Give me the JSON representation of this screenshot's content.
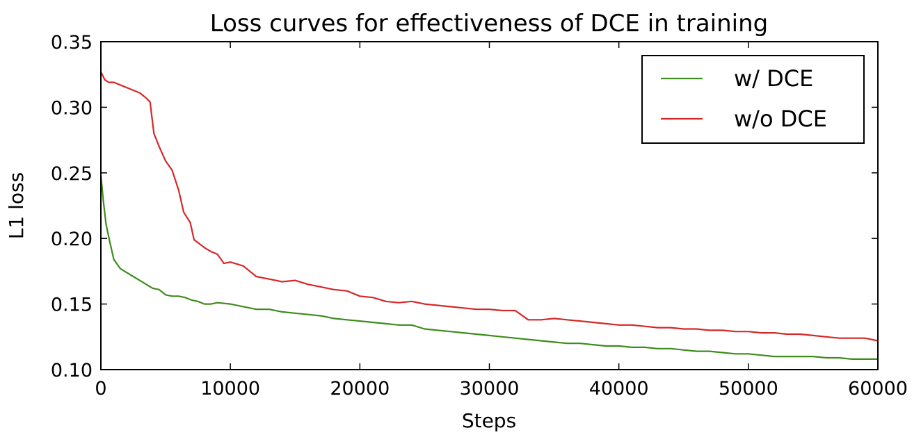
{
  "chart_data": {
    "type": "line",
    "title": "Loss curves for effectiveness of DCE in training",
    "xlabel": "Steps",
    "ylabel": "L1 loss",
    "xlim": [
      0,
      60000
    ],
    "ylim": [
      0.1,
      0.35
    ],
    "xticks": [
      0,
      10000,
      20000,
      30000,
      40000,
      50000,
      60000
    ],
    "xtick_labels": [
      "0",
      "10000",
      "20000",
      "30000",
      "40000",
      "50000",
      "60000"
    ],
    "yticks": [
      0.1,
      0.15,
      0.2,
      0.25,
      0.3,
      0.35
    ],
    "ytick_labels": [
      "0.10",
      "0.15",
      "0.20",
      "0.25",
      "0.30",
      "0.35"
    ],
    "grid": false,
    "legend_position": "top-right",
    "series": [
      {
        "name": "w/ DCE",
        "color": "#3d8c1c",
        "points": [
          [
            0,
            0.248
          ],
          [
            200,
            0.228
          ],
          [
            400,
            0.211
          ],
          [
            700,
            0.197
          ],
          [
            1000,
            0.184
          ],
          [
            1500,
            0.177
          ],
          [
            2000,
            0.174
          ],
          [
            2500,
            0.171
          ],
          [
            3000,
            0.168
          ],
          [
            3500,
            0.165
          ],
          [
            4000,
            0.162
          ],
          [
            4500,
            0.161
          ],
          [
            5000,
            0.157
          ],
          [
            5500,
            0.156
          ],
          [
            6000,
            0.156
          ],
          [
            6500,
            0.155
          ],
          [
            7000,
            0.153
          ],
          [
            7500,
            0.152
          ],
          [
            8000,
            0.15
          ],
          [
            8500,
            0.15
          ],
          [
            9000,
            0.151
          ],
          [
            10000,
            0.15
          ],
          [
            11000,
            0.148
          ],
          [
            12000,
            0.146
          ],
          [
            13000,
            0.146
          ],
          [
            14000,
            0.144
          ],
          [
            15000,
            0.143
          ],
          [
            16000,
            0.142
          ],
          [
            17000,
            0.141
          ],
          [
            18000,
            0.139
          ],
          [
            19000,
            0.138
          ],
          [
            20000,
            0.137
          ],
          [
            21000,
            0.136
          ],
          [
            22000,
            0.135
          ],
          [
            23000,
            0.134
          ],
          [
            24000,
            0.134
          ],
          [
            25000,
            0.131
          ],
          [
            26000,
            0.13
          ],
          [
            27000,
            0.129
          ],
          [
            28000,
            0.128
          ],
          [
            29000,
            0.127
          ],
          [
            30000,
            0.126
          ],
          [
            31000,
            0.125
          ],
          [
            32000,
            0.124
          ],
          [
            33000,
            0.123
          ],
          [
            34000,
            0.122
          ],
          [
            35000,
            0.121
          ],
          [
            36000,
            0.12
          ],
          [
            37000,
            0.12
          ],
          [
            38000,
            0.119
          ],
          [
            39000,
            0.118
          ],
          [
            40000,
            0.118
          ],
          [
            41000,
            0.117
          ],
          [
            42000,
            0.117
          ],
          [
            43000,
            0.116
          ],
          [
            44000,
            0.116
          ],
          [
            45000,
            0.115
          ],
          [
            46000,
            0.114
          ],
          [
            47000,
            0.114
          ],
          [
            48000,
            0.113
          ],
          [
            49000,
            0.112
          ],
          [
            50000,
            0.112
          ],
          [
            51000,
            0.111
          ],
          [
            52000,
            0.11
          ],
          [
            53000,
            0.11
          ],
          [
            54000,
            0.11
          ],
          [
            55000,
            0.11
          ],
          [
            56000,
            0.109
          ],
          [
            57000,
            0.109
          ],
          [
            58000,
            0.108
          ],
          [
            59000,
            0.108
          ],
          [
            60000,
            0.108
          ]
        ]
      },
      {
        "name": "w/o DCE",
        "color": "#d62728",
        "points": [
          [
            0,
            0.327
          ],
          [
            300,
            0.321
          ],
          [
            600,
            0.319
          ],
          [
            1000,
            0.319
          ],
          [
            1500,
            0.317
          ],
          [
            2000,
            0.315
          ],
          [
            2500,
            0.313
          ],
          [
            3000,
            0.311
          ],
          [
            3500,
            0.307
          ],
          [
            3800,
            0.304
          ],
          [
            4100,
            0.28
          ],
          [
            4500,
            0.27
          ],
          [
            5000,
            0.259
          ],
          [
            5500,
            0.252
          ],
          [
            6000,
            0.237
          ],
          [
            6400,
            0.22
          ],
          [
            6900,
            0.212
          ],
          [
            7200,
            0.199
          ],
          [
            7600,
            0.196
          ],
          [
            8000,
            0.193
          ],
          [
            8500,
            0.19
          ],
          [
            9000,
            0.188
          ],
          [
            9500,
            0.181
          ],
          [
            10000,
            0.182
          ],
          [
            11000,
            0.179
          ],
          [
            12000,
            0.171
          ],
          [
            13000,
            0.169
          ],
          [
            14000,
            0.167
          ],
          [
            15000,
            0.168
          ],
          [
            16000,
            0.165
          ],
          [
            17000,
            0.163
          ],
          [
            18000,
            0.161
          ],
          [
            19000,
            0.16
          ],
          [
            20000,
            0.156
          ],
          [
            21000,
            0.155
          ],
          [
            22000,
            0.152
          ],
          [
            23000,
            0.151
          ],
          [
            24000,
            0.152
          ],
          [
            25000,
            0.15
          ],
          [
            26000,
            0.149
          ],
          [
            27000,
            0.148
          ],
          [
            28000,
            0.147
          ],
          [
            29000,
            0.146
          ],
          [
            30000,
            0.146
          ],
          [
            31000,
            0.145
          ],
          [
            32000,
            0.145
          ],
          [
            33000,
            0.138
          ],
          [
            34000,
            0.138
          ],
          [
            35000,
            0.139
          ],
          [
            36000,
            0.138
          ],
          [
            37000,
            0.137
          ],
          [
            38000,
            0.136
          ],
          [
            39000,
            0.135
          ],
          [
            40000,
            0.134
          ],
          [
            41000,
            0.134
          ],
          [
            42000,
            0.133
          ],
          [
            43000,
            0.132
          ],
          [
            44000,
            0.132
          ],
          [
            45000,
            0.131
          ],
          [
            46000,
            0.131
          ],
          [
            47000,
            0.13
          ],
          [
            48000,
            0.13
          ],
          [
            49000,
            0.129
          ],
          [
            50000,
            0.129
          ],
          [
            51000,
            0.128
          ],
          [
            52000,
            0.128
          ],
          [
            53000,
            0.127
          ],
          [
            54000,
            0.127
          ],
          [
            55000,
            0.126
          ],
          [
            56000,
            0.125
          ],
          [
            57000,
            0.124
          ],
          [
            58000,
            0.124
          ],
          [
            59000,
            0.124
          ],
          [
            60000,
            0.122
          ]
        ]
      }
    ]
  }
}
